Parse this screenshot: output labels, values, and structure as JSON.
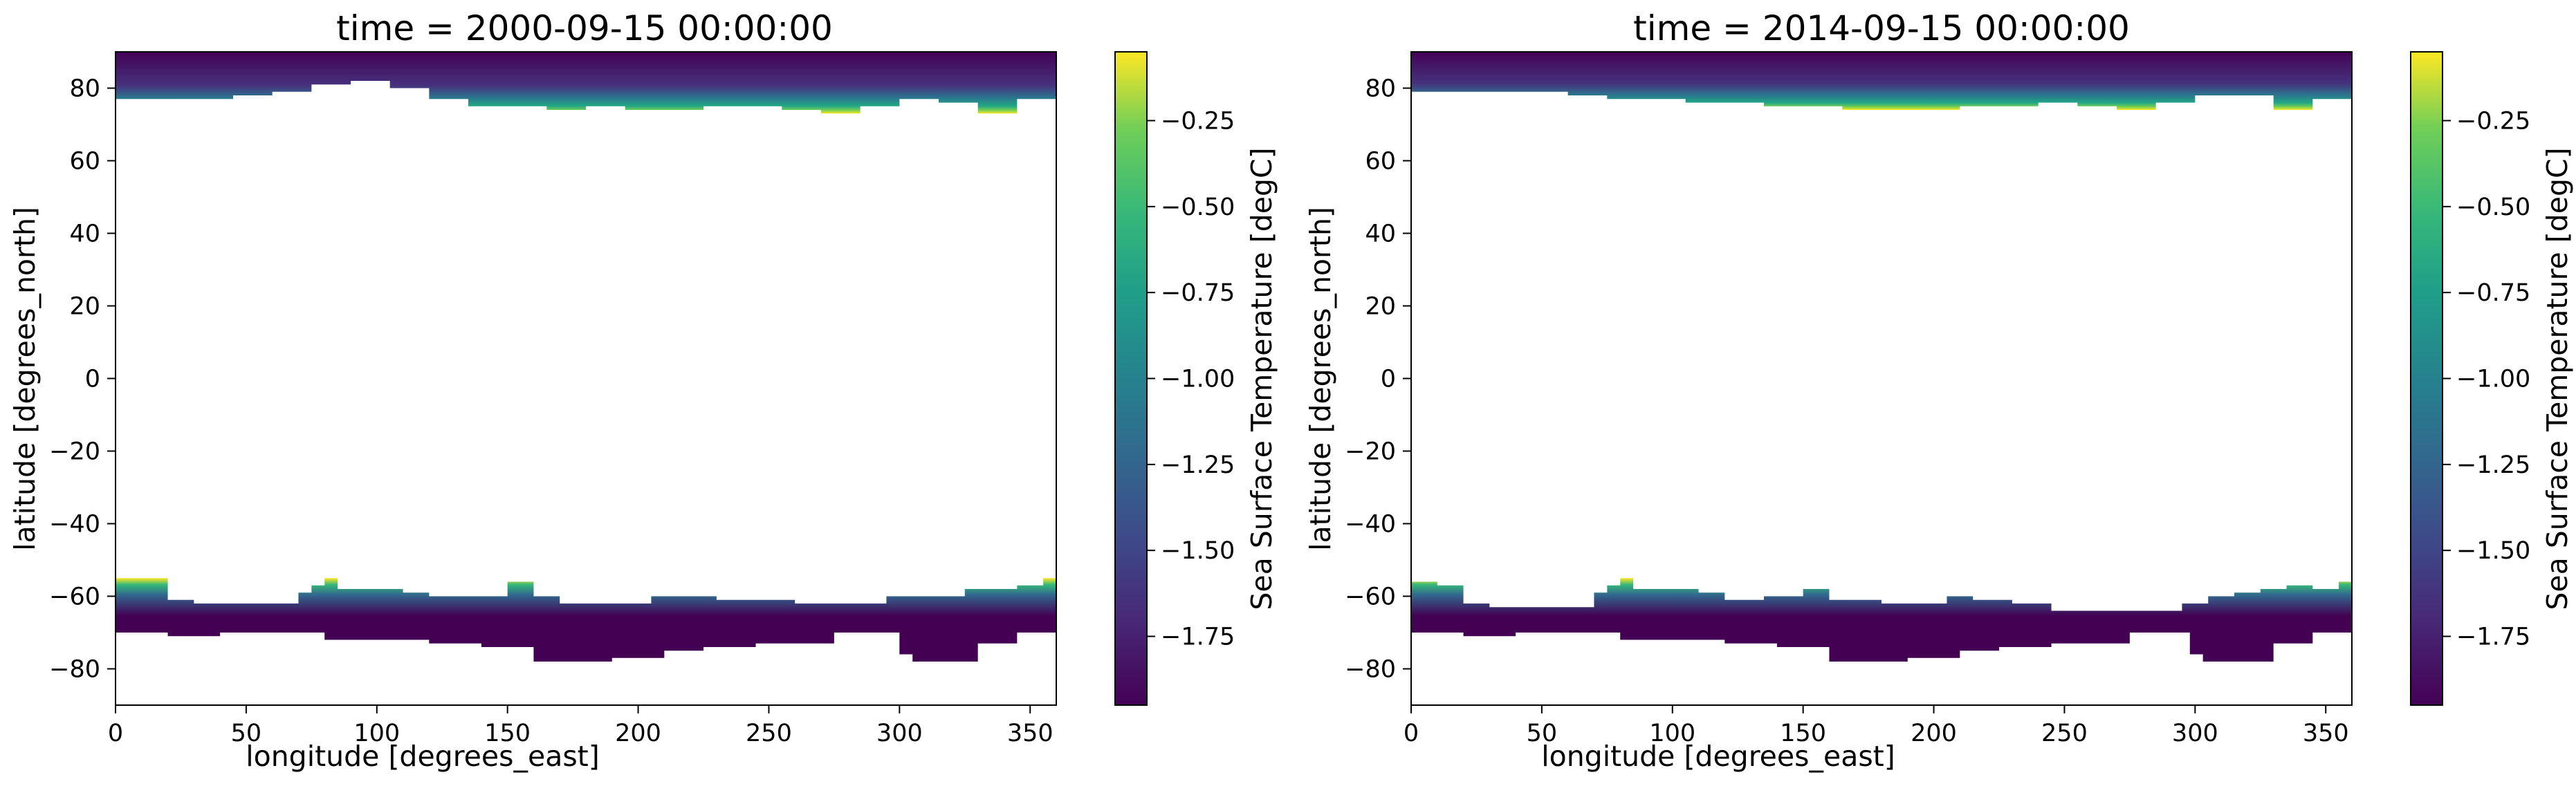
{
  "chart_data": [
    {
      "type": "heatmap",
      "title": "time = 2000-09-15 00:00:00",
      "xlabel": "longitude [degrees_east]",
      "ylabel": "latitude [degrees_north]",
      "xlim": [
        0,
        360
      ],
      "ylim": [
        -90,
        90
      ],
      "xticks": [
        0,
        50,
        100,
        150,
        200,
        250,
        300,
        350
      ],
      "yticks": [
        -80,
        -60,
        -40,
        -20,
        0,
        20,
        40,
        60,
        80
      ],
      "xtick_labels": [
        "0",
        "50",
        "100",
        "150",
        "200",
        "250",
        "300",
        "350"
      ],
      "ytick_labels": [
        "−80",
        "−60",
        "−40",
        "−20",
        "0",
        "20",
        "40",
        "60",
        "80"
      ],
      "colorbar": {
        "label": "Sea Surface Temperature [degC]",
        "colormap": "viridis",
        "range": [
          -1.95,
          -0.05
        ],
        "ticks": [
          -1.75,
          -1.5,
          -1.25,
          -1.0,
          -0.75,
          -0.5,
          -0.25
        ],
        "tick_labels": [
          "−1.75",
          "−1.50",
          "−1.25",
          "−1.00",
          "−0.75",
          "−0.50",
          "−0.25"
        ]
      },
      "arctic_edge": [
        [
          0,
          77
        ],
        [
          15,
          77
        ],
        [
          30,
          77
        ],
        [
          45,
          78
        ],
        [
          60,
          79
        ],
        [
          75,
          81
        ],
        [
          90,
          82
        ],
        [
          105,
          80
        ],
        [
          120,
          77
        ],
        [
          135,
          75
        ],
        [
          150,
          75
        ],
        [
          165,
          74
        ],
        [
          180,
          75
        ],
        [
          195,
          74
        ],
        [
          210,
          74
        ],
        [
          225,
          75
        ],
        [
          240,
          75
        ],
        [
          255,
          74
        ],
        [
          270,
          73
        ],
        [
          285,
          75
        ],
        [
          300,
          77
        ],
        [
          315,
          76
        ],
        [
          330,
          73
        ],
        [
          345,
          77
        ],
        [
          360,
          79
        ]
      ],
      "antarctic_edge": [
        [
          0,
          -55
        ],
        [
          10,
          -55
        ],
        [
          20,
          -61
        ],
        [
          30,
          -62
        ],
        [
          40,
          -62
        ],
        [
          50,
          -62
        ],
        [
          60,
          -62
        ],
        [
          70,
          -59
        ],
        [
          75,
          -57
        ],
        [
          80,
          -55
        ],
        [
          85,
          -58
        ],
        [
          90,
          -58
        ],
        [
          100,
          -58
        ],
        [
          110,
          -59
        ],
        [
          120,
          -60
        ],
        [
          135,
          -60
        ],
        [
          150,
          -56
        ],
        [
          160,
          -60
        ],
        [
          170,
          -62
        ],
        [
          180,
          -62
        ],
        [
          195,
          -62
        ],
        [
          205,
          -60
        ],
        [
          215,
          -60
        ],
        [
          230,
          -61
        ],
        [
          245,
          -61
        ],
        [
          260,
          -62
        ],
        [
          280,
          -62
        ],
        [
          295,
          -60
        ],
        [
          305,
          -60
        ],
        [
          315,
          -60
        ],
        [
          325,
          -58
        ],
        [
          335,
          -58
        ],
        [
          345,
          -57
        ],
        [
          355,
          -55
        ],
        [
          360,
          -55
        ]
      ],
      "antarctic_coast": [
        [
          0,
          -70
        ],
        [
          20,
          -70
        ],
        [
          40,
          -71
        ],
        [
          60,
          -70
        ],
        [
          80,
          -70
        ],
        [
          100,
          -72
        ],
        [
          120,
          -72
        ],
        [
          140,
          -73
        ],
        [
          160,
          -74
        ],
        [
          165,
          -78
        ],
        [
          190,
          -78
        ],
        [
          210,
          -77
        ],
        [
          225,
          -75
        ],
        [
          245,
          -74
        ],
        [
          260,
          -73
        ],
        [
          275,
          -73
        ],
        [
          290,
          -70
        ],
        [
          300,
          -70
        ],
        [
          305,
          -76
        ],
        [
          315,
          -78
        ],
        [
          330,
          -78
        ],
        [
          345,
          -73
        ],
        [
          360,
          -70
        ]
      ]
    },
    {
      "type": "heatmap",
      "title": "time = 2014-09-15 00:00:00",
      "xlabel": "longitude [degrees_east]",
      "ylabel": "latitude [degrees_north]",
      "xlim": [
        0,
        360
      ],
      "ylim": [
        -90,
        90
      ],
      "xticks": [
        0,
        50,
        100,
        150,
        200,
        250,
        300,
        350
      ],
      "yticks": [
        -80,
        -60,
        -40,
        -20,
        0,
        20,
        40,
        60,
        80
      ],
      "xtick_labels": [
        "0",
        "50",
        "100",
        "150",
        "200",
        "250",
        "300",
        "350"
      ],
      "ytick_labels": [
        "−80",
        "−60",
        "−40",
        "−20",
        "0",
        "20",
        "40",
        "60",
        "80"
      ],
      "colorbar": {
        "label": "Sea Surface Temperature [degC]",
        "colormap": "viridis",
        "range": [
          -1.95,
          -0.05
        ],
        "ticks": [
          -1.75,
          -1.5,
          -1.25,
          -1.0,
          -0.75,
          -0.5,
          -0.25
        ],
        "tick_labels": [
          "−1.75",
          "−1.50",
          "−1.25",
          "−1.00",
          "−0.75",
          "−0.50",
          "−0.25"
        ]
      },
      "arctic_edge": [
        [
          0,
          79
        ],
        [
          15,
          79
        ],
        [
          30,
          79
        ],
        [
          45,
          79
        ],
        [
          60,
          78
        ],
        [
          75,
          77
        ],
        [
          90,
          77
        ],
        [
          105,
          76
        ],
        [
          120,
          76
        ],
        [
          135,
          75
        ],
        [
          150,
          75
        ],
        [
          165,
          74
        ],
        [
          180,
          74
        ],
        [
          195,
          74
        ],
        [
          210,
          75
        ],
        [
          225,
          75
        ],
        [
          240,
          76
        ],
        [
          255,
          75
        ],
        [
          270,
          74
        ],
        [
          285,
          76
        ],
        [
          300,
          78
        ],
        [
          315,
          78
        ],
        [
          330,
          74
        ],
        [
          345,
          77
        ],
        [
          360,
          79
        ]
      ],
      "antarctic_edge": [
        [
          0,
          -56
        ],
        [
          10,
          -57
        ],
        [
          20,
          -62
        ],
        [
          30,
          -63
        ],
        [
          40,
          -63
        ],
        [
          50,
          -63
        ],
        [
          60,
          -63
        ],
        [
          70,
          -59
        ],
        [
          75,
          -57
        ],
        [
          80,
          -55
        ],
        [
          85,
          -58
        ],
        [
          90,
          -58
        ],
        [
          100,
          -58
        ],
        [
          110,
          -59
        ],
        [
          120,
          -61
        ],
        [
          135,
          -60
        ],
        [
          150,
          -58
        ],
        [
          160,
          -61
        ],
        [
          170,
          -61
        ],
        [
          180,
          -62
        ],
        [
          195,
          -62
        ],
        [
          205,
          -60
        ],
        [
          215,
          -61
        ],
        [
          230,
          -62
        ],
        [
          245,
          -64
        ],
        [
          260,
          -64
        ],
        [
          280,
          -64
        ],
        [
          295,
          -62
        ],
        [
          305,
          -60
        ],
        [
          315,
          -59
        ],
        [
          325,
          -58
        ],
        [
          335,
          -57
        ],
        [
          345,
          -58
        ],
        [
          355,
          -56
        ],
        [
          360,
          -56
        ]
      ],
      "antarctic_coast": [
        [
          0,
          -70
        ],
        [
          20,
          -70
        ],
        [
          40,
          -71
        ],
        [
          60,
          -70
        ],
        [
          80,
          -70
        ],
        [
          100,
          -72
        ],
        [
          120,
          -72
        ],
        [
          140,
          -73
        ],
        [
          160,
          -74
        ],
        [
          165,
          -78
        ],
        [
          190,
          -78
        ],
        [
          210,
          -77
        ],
        [
          225,
          -75
        ],
        [
          245,
          -74
        ],
        [
          260,
          -73
        ],
        [
          275,
          -73
        ],
        [
          290,
          -70
        ],
        [
          298,
          -70
        ],
        [
          303,
          -76
        ],
        [
          315,
          -78
        ],
        [
          330,
          -78
        ],
        [
          345,
          -73
        ],
        [
          360,
          -70
        ]
      ]
    }
  ]
}
